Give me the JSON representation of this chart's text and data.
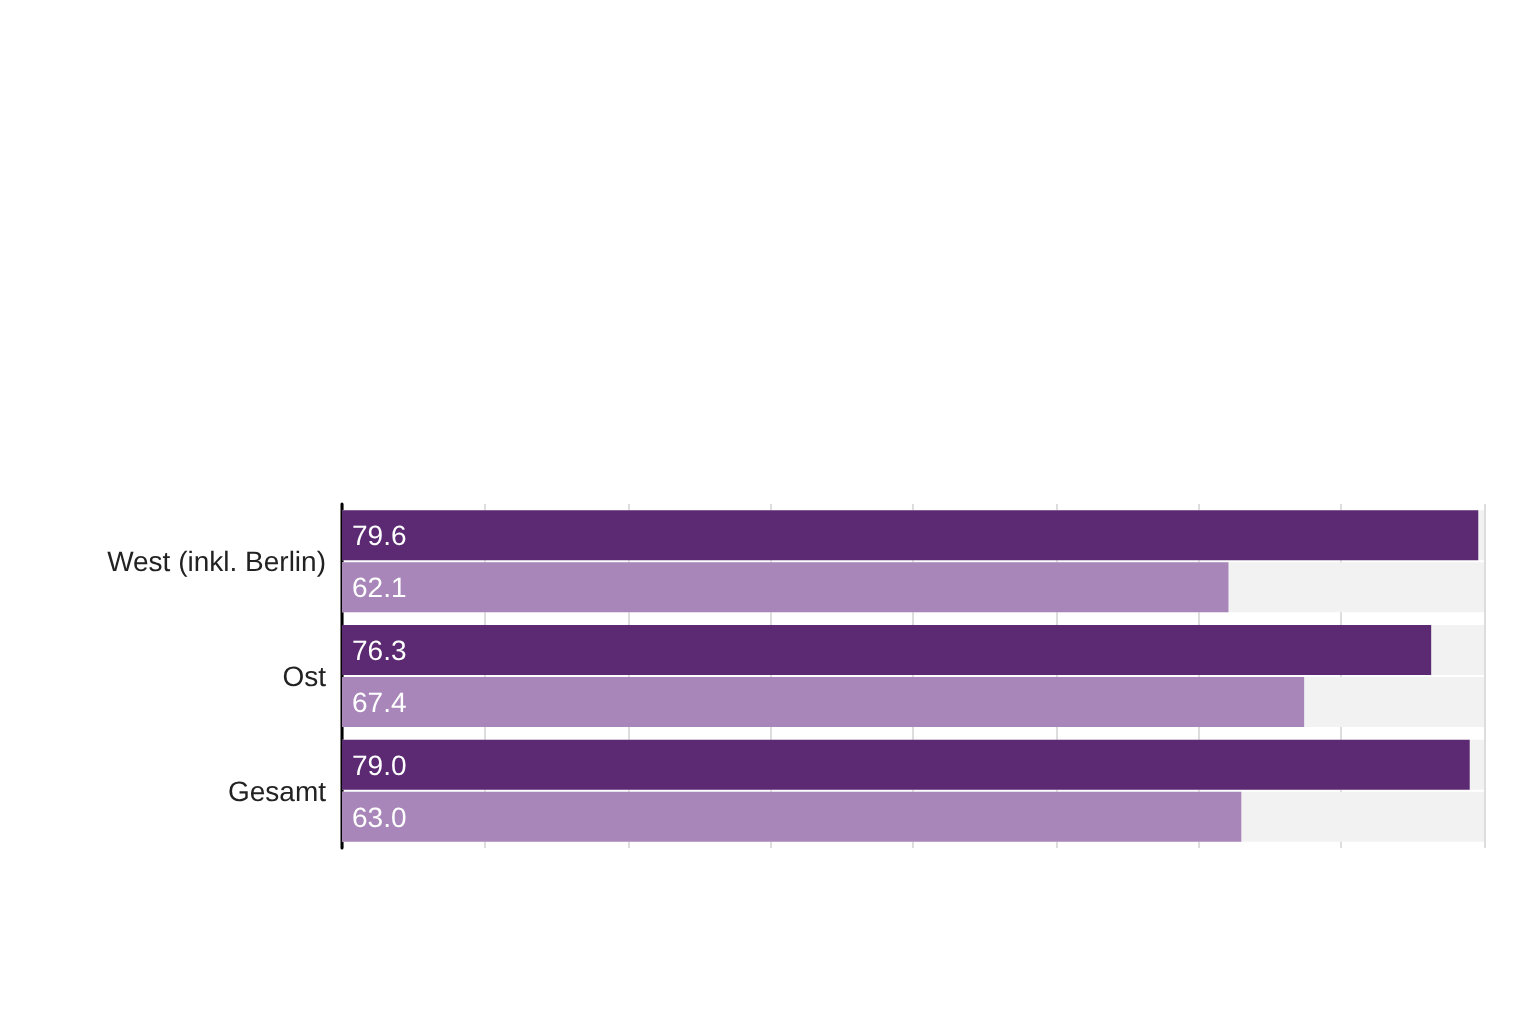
{
  "chart_data": {
    "type": "bar",
    "orientation": "horizontal",
    "categories": [
      "West (inkl. Berlin)",
      "Ost",
      "Gesamt"
    ],
    "series": [
      {
        "color": "#5c2a73",
        "values": [
          79.6,
          76.3,
          79.0
        ],
        "value_labels": [
          "79.6",
          "76.3",
          "79.0"
        ]
      },
      {
        "color": "#a886b9",
        "values": [
          62.1,
          67.4,
          63.0
        ],
        "value_labels": [
          "62.1",
          "67.4",
          "63.0"
        ]
      }
    ],
    "xlim": [
      0,
      80
    ],
    "xticks": [
      {
        "value": 0,
        "label": null
      },
      {
        "value": 10,
        "label": null
      },
      {
        "value": 20,
        "label": null
      },
      {
        "value": 30,
        "label": null
      },
      {
        "value": 40,
        "label": null
      },
      {
        "value": 50,
        "label": null
      },
      {
        "value": 60,
        "label": null
      },
      {
        "value": 70,
        "label": null
      },
      {
        "value": 80,
        "label": null
      }
    ],
    "grid": "x",
    "tick_labels": "y"
  }
}
